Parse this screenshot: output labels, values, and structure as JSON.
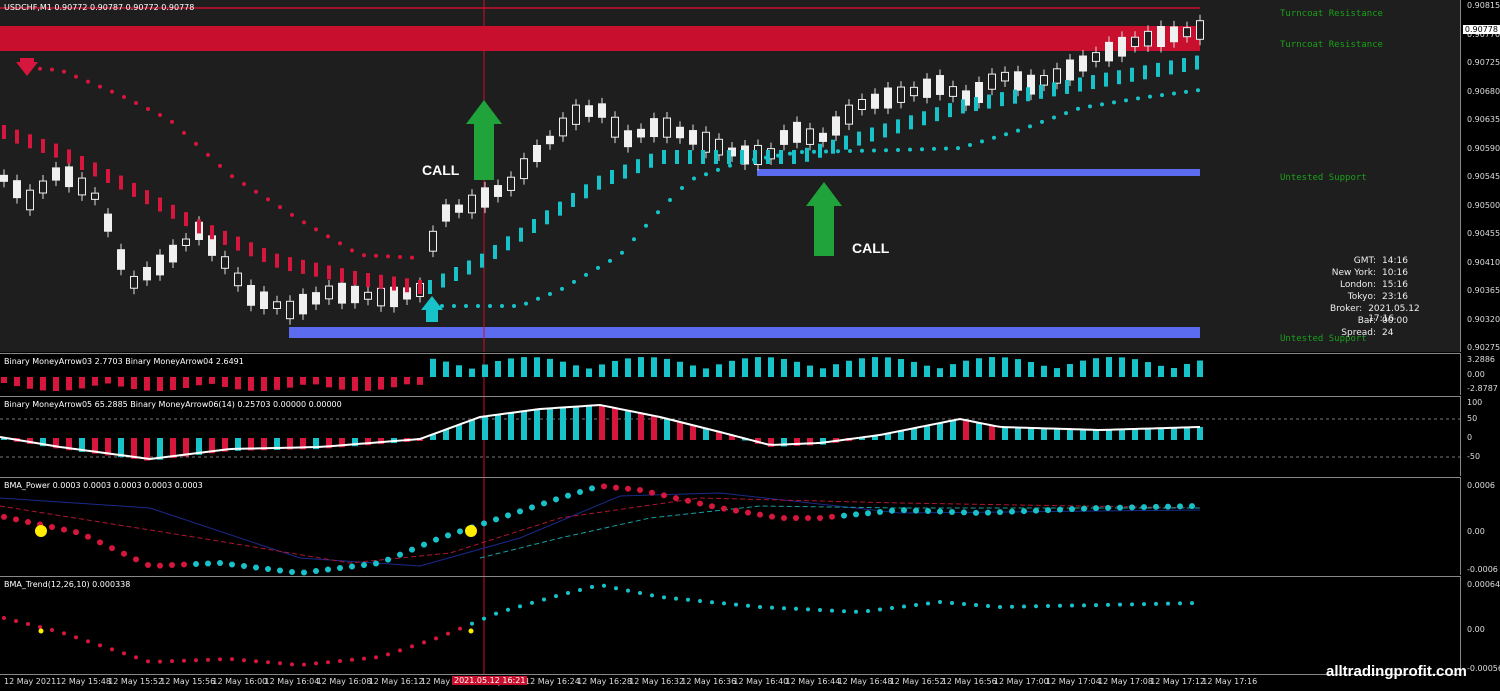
{
  "main": {
    "symbol_line": "USDCHF,M1  0.90772 0.90787 0.90772 0.90778",
    "price_ticks": [
      "0.90815",
      "0.90770",
      "0.90725",
      "0.90680",
      "0.90635",
      "0.90590",
      "0.90545",
      "0.90500",
      "0.90455",
      "0.90410",
      "0.90365",
      "0.90320",
      "0.90275"
    ],
    "current_price": "0.90778",
    "zones": [
      "Turncoat Resistance",
      "Turncoat Resistance",
      "Untested Support",
      "Untested Support"
    ],
    "calls": [
      "CALL",
      "CALL"
    ],
    "info": [
      {
        "k": "GMT:",
        "v": "14:16"
      },
      {
        "k": "New York:",
        "v": "10:16"
      },
      {
        "k": "London:",
        "v": "15:16"
      },
      {
        "k": "Tokyo:",
        "v": "23:16"
      },
      {
        "k": "Broker:",
        "v": "2021.05.12 17:16"
      },
      {
        "k": "Bar:",
        "v": "00:00"
      },
      {
        "k": "Spread:",
        "v": "24"
      }
    ]
  },
  "sub1": {
    "title": "Binary MoneyArrow03 2.7703  Binary MoneyArrow04 2.6491",
    "ticks": [
      "3.2886",
      "0.00",
      "-2.8787"
    ]
  },
  "sub2": {
    "title": "Binary MoneyArrow05 65.2885  Binary MoneyArrow06(14) 0.25703 0.00000 0.00000",
    "ticks": [
      "100",
      "50",
      "0",
      "-50"
    ]
  },
  "sub3": {
    "title": "BMA_Power 0.0003 0.0003 0.0003 0.0003 0.0003",
    "ticks": [
      "0.0006",
      "0.00",
      "-0.0006"
    ]
  },
  "sub4": {
    "title": "BMA_Trend(12,26,10) 0.000338",
    "ticks": [
      "0.000646",
      "0.00",
      "-0.000564"
    ]
  },
  "time_axis": [
    "12 May 2021",
    "12 May 15:48",
    "12 May 15:52",
    "12 May 15:56",
    "12 May 16:00",
    "12 May 16:04",
    "12 May 16:08",
    "12 May 16:12",
    "12 May 16:16",
    "12 May 16:20",
    "12 May 16:24",
    "12 May 16:28",
    "12 May 16:32",
    "12 May 16:36",
    "12 May 16:40",
    "12 May 16:44",
    "12 May 16:48",
    "12 May 16:52",
    "12 May 16:56",
    "12 May 17:00",
    "12 May 17:04",
    "12 May 17:08",
    "12 May 17:12",
    "12 May 17:16"
  ],
  "cursor_time": "2021.05.12 16:21",
  "watermark": "alltradingprofit.com",
  "colors": {
    "bg": "#1e1e1e",
    "bull": "#f0f0f0",
    "bear": "#ffffff",
    "resistance": "#c8102e",
    "support": "#5b6cf0",
    "teal": "#17c3c9",
    "red": "#d6163c",
    "green": "#1fa33a"
  }
}
